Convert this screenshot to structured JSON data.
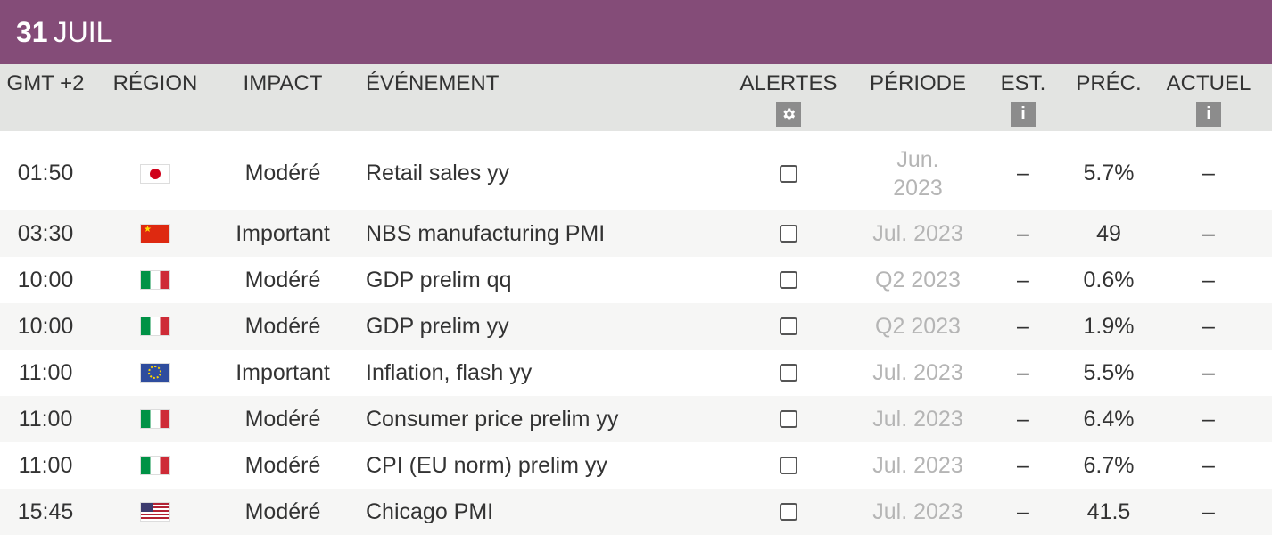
{
  "date": {
    "day": "31",
    "month": "JUIL"
  },
  "header": {
    "time": "GMT +2",
    "region": "RÉGION",
    "impact": "IMPACT",
    "event": "ÉVÉNEMENT",
    "alerts": "ALERTES",
    "period": "PÉRIODE",
    "est": "EST.",
    "prev": "PRÉC.",
    "actual": "ACTUEL",
    "alerts_icon": "gear-icon",
    "info_icon": "info-icon"
  },
  "colors": {
    "header_bar": "#844c78",
    "column_header_bg": "#e3e4e2",
    "period_text": "#b5b5b5"
  },
  "rows": [
    {
      "time": "01:50",
      "region": "japan-flag-icon",
      "impact": "Modéré",
      "event": "Retail sales yy",
      "period": "Jun. 2023",
      "est": "–",
      "prev": "5.7%",
      "actual": "–"
    },
    {
      "time": "03:30",
      "region": "china-flag-icon",
      "impact": "Important",
      "event": "NBS manufacturing PMI",
      "period": "Jul. 2023",
      "est": "–",
      "prev": "49",
      "actual": "–"
    },
    {
      "time": "10:00",
      "region": "italy-flag-icon",
      "impact": "Modéré",
      "event": "GDP prelim qq",
      "period": "Q2 2023",
      "est": "–",
      "prev": "0.6%",
      "actual": "–"
    },
    {
      "time": "10:00",
      "region": "italy-flag-icon",
      "impact": "Modéré",
      "event": "GDP prelim yy",
      "period": "Q2 2023",
      "est": "–",
      "prev": "1.9%",
      "actual": "–"
    },
    {
      "time": "11:00",
      "region": "eu-flag-icon",
      "impact": "Important",
      "event": "Inflation, flash yy",
      "period": "Jul. 2023",
      "est": "–",
      "prev": "5.5%",
      "actual": "–"
    },
    {
      "time": "11:00",
      "region": "italy-flag-icon",
      "impact": "Modéré",
      "event": "Consumer price prelim yy",
      "period": "Jul. 2023",
      "est": "–",
      "prev": "6.4%",
      "actual": "–"
    },
    {
      "time": "11:00",
      "region": "italy-flag-icon",
      "impact": "Modéré",
      "event": "CPI (EU norm) prelim yy",
      "period": "Jul. 2023",
      "est": "–",
      "prev": "6.7%",
      "actual": "–"
    },
    {
      "time": "15:45",
      "region": "usa-flag-icon",
      "impact": "Modéré",
      "event": "Chicago PMI",
      "period": "Jul. 2023",
      "est": "–",
      "prev": "41.5",
      "actual": "–"
    }
  ]
}
